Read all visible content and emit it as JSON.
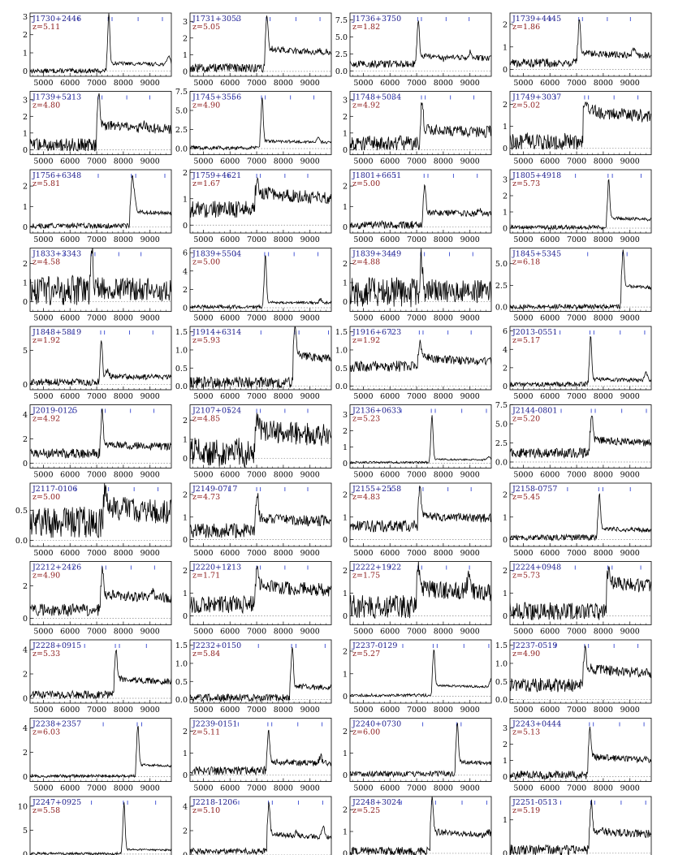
{
  "chart_data": [
    {
      "type": "line",
      "name": "J1730+2446",
      "redshift": "z=5.11",
      "yticks": [
        0,
        1,
        2,
        3
      ],
      "ylim": [
        -0.3,
        3.2
      ],
      "peak_wl": 7430,
      "peak": 3.0,
      "cont": 0.35,
      "blue": 0.0,
      "noise": 0.1,
      "extra": [
        [
          9700,
          0.9
        ]
      ]
    },
    {
      "type": "line",
      "name": "J1731+3053",
      "redshift": "z=5.05",
      "yticks": [
        0,
        1,
        2,
        3
      ],
      "ylim": [
        -0.3,
        3.5
      ],
      "peak_wl": 7360,
      "peak": 3.1,
      "cont": 1.1,
      "blue": 0.2,
      "noise": 0.2,
      "extra": [
        [
          9300,
          1.0
        ]
      ]
    },
    {
      "type": "line",
      "name": "J1736+3750",
      "redshift": "z=1.82",
      "yticks": [
        0.0,
        2.5,
        5.0,
        7.5
      ],
      "ylim": [
        -0.8,
        8.5
      ],
      "peak_wl": 7040,
      "peak": 7.2,
      "cont": 1.8,
      "blue": 1.0,
      "noise": 0.4,
      "extra": [
        [
          9000,
          2.5
        ],
        [
          8000,
          1.0
        ]
      ]
    },
    {
      "type": "line",
      "name": "J1739+4445",
      "redshift": "z=1.86",
      "yticks": [
        0,
        1,
        2
      ],
      "ylim": [
        -0.3,
        2.5
      ],
      "peak_wl": 7080,
      "peak": 2.1,
      "cont": 0.6,
      "blue": 0.3,
      "noise": 0.15,
      "extra": [
        [
          9150,
          0.8
        ]
      ]
    },
    {
      "type": "line",
      "name": "J1739+5213",
      "redshift": "z=4.80",
      "yticks": [
        0,
        1,
        2,
        3
      ],
      "ylim": [
        -0.3,
        3.5
      ],
      "peak_wl": 7060,
      "peak": 3.3,
      "cont": 1.2,
      "blue": 0.3,
      "noise": 0.3,
      "extra": [
        [
          8800,
          1.2
        ],
        [
          7500,
          1.0
        ]
      ]
    },
    {
      "type": "line",
      "name": "J1745+3556",
      "redshift": "z=4.90",
      "yticks": [
        0.0,
        2.5,
        5.0,
        7.5
      ],
      "ylim": [
        -0.8,
        7.5
      ],
      "peak_wl": 7180,
      "peak": 6.5,
      "cont": 0.8,
      "blue": 0.1,
      "noise": 0.2,
      "extra": [
        [
          9300,
          1.5
        ]
      ]
    },
    {
      "type": "line",
      "name": "J1748+5034",
      "redshift": "z=4.92",
      "yticks": [
        0,
        1,
        2,
        3
      ],
      "ylim": [
        -0.3,
        3.5
      ],
      "peak_wl": 7180,
      "peak": 2.8,
      "cont": 1.0,
      "blue": 0.4,
      "noise": 0.35,
      "extra": [
        [
          8100,
          0.8
        ],
        [
          9700,
          1.0
        ]
      ]
    },
    {
      "type": "line",
      "name": "J1749+3037",
      "redshift": "z=5.02",
      "yticks": [
        0,
        1,
        2
      ],
      "ylim": [
        -0.3,
        2.6
      ],
      "peak_wl": 7300,
      "peak": 1.7,
      "cont": 1.4,
      "blue": 0.3,
      "noise": 0.3,
      "extra": []
    },
    {
      "type": "line",
      "name": "J1756+6348",
      "redshift": "z=5.81",
      "yticks": [
        0,
        1,
        2
      ],
      "ylim": [
        -0.3,
        2.8
      ],
      "peak_wl": 8300,
      "peak": 2.0,
      "cont": 0.6,
      "blue": 0.05,
      "noise": 0.1,
      "extra": [
        [
          8400,
          1.7
        ]
      ]
    },
    {
      "type": "line",
      "name": "J1759+4621",
      "redshift": "z=1.67",
      "yticks": [
        0,
        1,
        2
      ],
      "ylim": [
        -0.3,
        2.1
      ],
      "peak_wl": 7000,
      "peak": 1.5,
      "cont": 1.0,
      "blue": 0.6,
      "noise": 0.25,
      "extra": [
        [
          9500,
          0.9
        ]
      ]
    },
    {
      "type": "line",
      "name": "J1801+6651",
      "redshift": "z=5.00",
      "yticks": [
        0,
        1,
        2
      ],
      "ylim": [
        -0.3,
        2.8
      ],
      "peak_wl": 7280,
      "peak": 2.0,
      "cont": 0.6,
      "blue": 0.1,
      "noise": 0.15,
      "extra": [
        [
          9350,
          0.8
        ]
      ]
    },
    {
      "type": "line",
      "name": "J1805+4918",
      "redshift": "z=5.73",
      "yticks": [
        0,
        1,
        2,
        3
      ],
      "ylim": [
        -0.3,
        3.6
      ],
      "peak_wl": 8180,
      "peak": 2.9,
      "cont": 0.5,
      "blue": 0.05,
      "noise": 0.1,
      "extra": []
    },
    {
      "type": "line",
      "name": "J1833+3343",
      "redshift": "z=4.58",
      "yticks": [
        0,
        1,
        2
      ],
      "ylim": [
        -0.5,
        2.8
      ],
      "peak_wl": 6800,
      "peak": 2.4,
      "cont": 0.6,
      "blue": 0.6,
      "noise": 0.6,
      "extra": []
    },
    {
      "type": "line",
      "name": "J1839+5504",
      "redshift": "z=5.00",
      "yticks": [
        0,
        2,
        4,
        6
      ],
      "ylim": [
        -0.4,
        6.5
      ],
      "peak_wl": 7300,
      "peak": 5.6,
      "cont": 0.5,
      "blue": 0.1,
      "noise": 0.15,
      "extra": [
        [
          9400,
          0.9
        ]
      ]
    },
    {
      "type": "line",
      "name": "J1839+3449",
      "redshift": "z=4.88",
      "yticks": [
        0,
        1,
        2
      ],
      "ylim": [
        -0.5,
        2.8
      ],
      "peak_wl": 7150,
      "peak": 2.3,
      "cont": 0.5,
      "blue": 0.5,
      "noise": 0.6,
      "extra": []
    },
    {
      "type": "line",
      "name": "J1845+5345",
      "redshift": "z=6.18",
      "yticks": [
        0.0,
        2.5,
        5.0
      ],
      "ylim": [
        -0.5,
        6.8
      ],
      "peak_wl": 8720,
      "peak": 6.0,
      "cont": 2.0,
      "blue": 0.05,
      "noise": 0.2,
      "extra": []
    },
    {
      "type": "line",
      "name": "J1848+5819",
      "redshift": "z=1.92",
      "yticks": [
        0,
        5
      ],
      "ylim": [
        -0.8,
        8.5
      ],
      "peak_wl": 7150,
      "peak": 6.6,
      "cont": 1.0,
      "blue": 0.3,
      "noise": 0.4,
      "extra": [
        [
          7400,
          2.0
        ]
      ]
    },
    {
      "type": "line",
      "name": "J1914+6314",
      "redshift": "z=5.93",
      "yticks": [
        0.0,
        0.5,
        1.0,
        1.5
      ],
      "ylim": [
        -0.1,
        1.65
      ],
      "peak_wl": 8420,
      "peak": 1.4,
      "cont": 0.7,
      "blue": 0.1,
      "noise": 0.12,
      "extra": []
    },
    {
      "type": "line",
      "name": "J1916+6723",
      "redshift": "z=1.92",
      "yticks": [
        0.0,
        0.5,
        1.0,
        1.5
      ],
      "ylim": [
        -0.1,
        1.65
      ],
      "peak_wl": 7100,
      "peak": 1.15,
      "cont": 0.65,
      "blue": 0.55,
      "noise": 0.12,
      "extra": []
    },
    {
      "type": "line",
      "name": "J2013-0551",
      "redshift": "z=5.17",
      "yticks": [
        0,
        2,
        4,
        6
      ],
      "ylim": [
        -0.4,
        6.5
      ],
      "peak_wl": 7500,
      "peak": 5.3,
      "cont": 0.6,
      "blue": 0.2,
      "noise": 0.2,
      "extra": [
        [
          9600,
          1.5
        ]
      ]
    },
    {
      "type": "line",
      "name": "J2019-0125",
      "redshift": "z=4.92",
      "yticks": [
        0,
        2,
        4
      ],
      "ylim": [
        -0.4,
        4.8
      ],
      "peak_wl": 7180,
      "peak": 3.9,
      "cont": 1.3,
      "blue": 0.8,
      "noise": 0.3,
      "extra": []
    },
    {
      "type": "line",
      "name": "J2107+0524",
      "redshift": "z=4.85",
      "yticks": [
        0,
        1,
        2
      ],
      "ylim": [
        -0.5,
        2.8
      ],
      "peak_wl": 7000,
      "peak": 1.8,
      "cont": 1.2,
      "blue": 0.3,
      "noise": 0.6,
      "extra": []
    },
    {
      "type": "line",
      "name": "J2136+0633",
      "redshift": "z=5.23",
      "yticks": [
        0,
        1,
        2,
        3
      ],
      "ylim": [
        -0.3,
        3.6
      ],
      "peak_wl": 7550,
      "peak": 2.9,
      "cont": 0.2,
      "blue": 0.05,
      "noise": 0.05,
      "extra": [
        [
          9700,
          0.4
        ]
      ]
    },
    {
      "type": "line",
      "name": "J2144-0801",
      "redshift": "z=5.20",
      "yticks": [
        0.0,
        2.5,
        5.0,
        7.5
      ],
      "ylim": [
        -0.8,
        7.5
      ],
      "peak_wl": 7550,
      "peak": 5.8,
      "cont": 2.4,
      "blue": 1.2,
      "noise": 0.5,
      "extra": []
    },
    {
      "type": "line",
      "name": "J2117-0106",
      "redshift": "z=5.00",
      "yticks": [
        0.0,
        0.5
      ],
      "ylim": [
        -0.1,
        0.95
      ],
      "peak_wl": 7300,
      "peak": 0.75,
      "cont": 0.45,
      "blue": 0.3,
      "noise": 0.2,
      "extra": []
    },
    {
      "type": "line",
      "name": "J2149-0717",
      "redshift": "z=4.73",
      "yticks": [
        0,
        1,
        2
      ],
      "ylim": [
        -0.3,
        2.5
      ],
      "peak_wl": 7000,
      "peak": 1.9,
      "cont": 0.8,
      "blue": 0.4,
      "noise": 0.25,
      "extra": []
    },
    {
      "type": "line",
      "name": "J2155+2558",
      "redshift": "z=4.83",
      "yticks": [
        0,
        1,
        2
      ],
      "ylim": [
        -0.3,
        2.5
      ],
      "peak_wl": 7100,
      "peak": 2.1,
      "cont": 0.9,
      "blue": 0.6,
      "noise": 0.2,
      "extra": []
    },
    {
      "type": "line",
      "name": "J2158-0757",
      "redshift": "z=5.45",
      "yticks": [
        0,
        1,
        2
      ],
      "ylim": [
        -0.3,
        2.5
      ],
      "peak_wl": 7830,
      "peak": 2.0,
      "cont": 0.4,
      "blue": 0.1,
      "noise": 0.1,
      "extra": []
    },
    {
      "type": "line",
      "name": "J2212+2426",
      "redshift": "z=4.90",
      "yticks": [
        0,
        2
      ],
      "ylim": [
        -0.4,
        3.5
      ],
      "peak_wl": 7200,
      "peak": 2.7,
      "cont": 1.2,
      "blue": 0.5,
      "noise": 0.3,
      "extra": [
        [
          9100,
          1.4
        ]
      ]
    },
    {
      "type": "line",
      "name": "J2220+1213",
      "redshift": "z=1.71",
      "yticks": [
        0,
        1,
        2
      ],
      "ylim": [
        -0.4,
        2.4
      ],
      "peak_wl": 7000,
      "peak": 1.7,
      "cont": 1.1,
      "blue": 0.5,
      "noise": 0.3,
      "extra": []
    },
    {
      "type": "line",
      "name": "J2222+1922",
      "redshift": "z=1.75",
      "yticks": [
        0,
        1,
        2
      ],
      "ylim": [
        -0.4,
        2.4
      ],
      "peak_wl": 7050,
      "peak": 1.8,
      "cont": 1.0,
      "blue": 0.4,
      "noise": 0.4,
      "extra": [
        [
          8950,
          1.6
        ]
      ]
    },
    {
      "type": "line",
      "name": "J2224+0948",
      "redshift": "z=5.73",
      "yticks": [
        0,
        1,
        2
      ],
      "ylim": [
        -0.4,
        2.4
      ],
      "peak_wl": 8170,
      "peak": 1.7,
      "cont": 1.2,
      "blue": 0.2,
      "noise": 0.3,
      "extra": []
    },
    {
      "type": "line",
      "name": "J2228+0915",
      "redshift": "z=5.33",
      "yticks": [
        0,
        2,
        4
      ],
      "ylim": [
        -0.4,
        4.8
      ],
      "peak_wl": 7700,
      "peak": 3.6,
      "cont": 1.3,
      "blue": 0.3,
      "noise": 0.25,
      "extra": []
    },
    {
      "type": "line",
      "name": "J2232+0150",
      "redshift": "z=5.84",
      "yticks": [
        0.0,
        0.5,
        1.0,
        1.5
      ],
      "ylim": [
        -0.1,
        1.65
      ],
      "peak_wl": 8310,
      "peak": 1.4,
      "cont": 0.3,
      "blue": 0.05,
      "noise": 0.08,
      "extra": []
    },
    {
      "type": "line",
      "name": "J2237-0129",
      "redshift": "z=5.27",
      "yticks": [
        0,
        1,
        2
      ],
      "ylim": [
        -0.3,
        2.5
      ],
      "peak_wl": 7620,
      "peak": 2.0,
      "cont": 0.4,
      "blue": 0.05,
      "noise": 0.05,
      "extra": [
        [
          9800,
          0.8
        ]
      ]
    },
    {
      "type": "line",
      "name": "J2237-0519",
      "redshift": "z=4.90",
      "yticks": [
        0.0,
        0.5,
        1.0,
        1.5
      ],
      "ylim": [
        -0.1,
        1.65
      ],
      "peak_wl": 7300,
      "peak": 1.3,
      "cont": 0.7,
      "blue": 0.4,
      "noise": 0.15,
      "extra": []
    },
    {
      "type": "line",
      "name": "J2238+2357",
      "redshift": "z=6.03",
      "yticks": [
        0,
        2,
        4
      ],
      "ylim": [
        -0.4,
        4.8
      ],
      "peak_wl": 8520,
      "peak": 4.0,
      "cont": 0.8,
      "blue": 0.05,
      "noise": 0.1,
      "extra": []
    },
    {
      "type": "line",
      "name": "J2239-0151",
      "redshift": "z=5.11",
      "yticks": [
        0,
        1,
        2
      ],
      "ylim": [
        -0.3,
        2.6
      ],
      "peak_wl": 7420,
      "peak": 1.9,
      "cont": 0.5,
      "blue": 0.2,
      "noise": 0.15,
      "extra": [
        [
          9400,
          0.8
        ]
      ]
    },
    {
      "type": "line",
      "name": "J2240+0730",
      "redshift": "z=6.00",
      "yticks": [
        0,
        1,
        2
      ],
      "ylim": [
        -0.3,
        2.6
      ],
      "peak_wl": 8500,
      "peak": 2.3,
      "cont": 0.5,
      "blue": 0.05,
      "noise": 0.1,
      "extra": []
    },
    {
      "type": "line",
      "name": "J2243+0444",
      "redshift": "z=5.13",
      "yticks": [
        0,
        1,
        2,
        3
      ],
      "ylim": [
        -0.3,
        3.6
      ],
      "peak_wl": 7480,
      "peak": 2.8,
      "cont": 1.0,
      "blue": 0.1,
      "noise": 0.2,
      "extra": []
    },
    {
      "type": "line",
      "name": "J2247+0925",
      "redshift": "z=5.58",
      "yticks": [
        0,
        5,
        10
      ],
      "ylim": [
        -1.2,
        12.0
      ],
      "peak_wl": 8000,
      "peak": 10.5,
      "cont": 0.8,
      "blue": 0.1,
      "noise": 0.2,
      "extra": []
    },
    {
      "type": "line",
      "name": "J2218-1206",
      "redshift": "z=5.10",
      "yticks": [
        0,
        2,
        4
      ],
      "ylim": [
        -0.4,
        4.8
      ],
      "peak_wl": 7440,
      "peak": 3.9,
      "cont": 1.4,
      "blue": 0.3,
      "noise": 0.2,
      "extra": [
        [
          9500,
          2.2
        ],
        [
          8500,
          1.5
        ]
      ]
    },
    {
      "type": "line",
      "name": "J2248+3024",
      "redshift": "z=5.25",
      "yticks": [
        0,
        1,
        2
      ],
      "ylim": [
        -0.3,
        2.6
      ],
      "peak_wl": 7560,
      "peak": 2.3,
      "cont": 0.8,
      "blue": 0.1,
      "noise": 0.15,
      "extra": [
        [
          9700,
          0.8
        ]
      ]
    },
    {
      "type": "line",
      "name": "J2251-0513",
      "redshift": "z=5.19",
      "yticks": [
        0,
        1
      ],
      "ylim": [
        -0.2,
        1.7
      ],
      "peak_wl": 7530,
      "peak": 1.4,
      "cont": 0.55,
      "blue": 0.1,
      "noise": 0.12,
      "extra": []
    }
  ],
  "x_axis": {
    "xlim": [
      4500,
      9800
    ],
    "ticks": [
      5000,
      6000,
      7000,
      8000,
      9000
    ]
  },
  "colors": {
    "name": "#1c1c8c",
    "redshift": "#8b1a1a",
    "marker": "#4b5bd6",
    "line": "#000000",
    "zero": "#888888",
    "frame": "#000000"
  }
}
